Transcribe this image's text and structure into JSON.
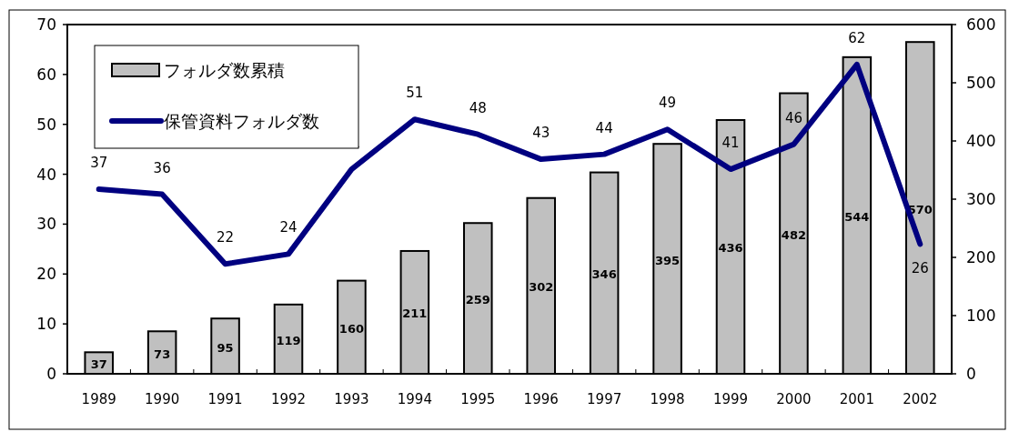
{
  "chart_data": {
    "type": "bar",
    "categories": [
      "1989",
      "1990",
      "1991",
      "1992",
      "1993",
      "1994",
      "1995",
      "1996",
      "1997",
      "1998",
      "1999",
      "2000",
      "2001",
      "2002"
    ],
    "series": [
      {
        "name": "フォルダ数累積",
        "axis": "y2",
        "color": "#c0c0c0",
        "values": [
          37,
          73,
          95,
          119,
          160,
          211,
          259,
          302,
          346,
          395,
          436,
          482,
          544,
          570
        ]
      },
      {
        "name": "保管資料フォルダ数",
        "type": "line",
        "axis": "y",
        "color": "#000080",
        "values": [
          37,
          36,
          22,
          24,
          41,
          51,
          48,
          43,
          44,
          49,
          41,
          46,
          62,
          26
        ]
      }
    ],
    "ylim": [
      0,
      70
    ],
    "yticks": [
      0,
      10,
      20,
      30,
      40,
      50,
      60,
      70
    ],
    "y2lim": [
      0,
      600
    ],
    "y2ticks": [
      0,
      100,
      200,
      300,
      400,
      500,
      600
    ],
    "data_labels": true,
    "legend": "top left"
  }
}
